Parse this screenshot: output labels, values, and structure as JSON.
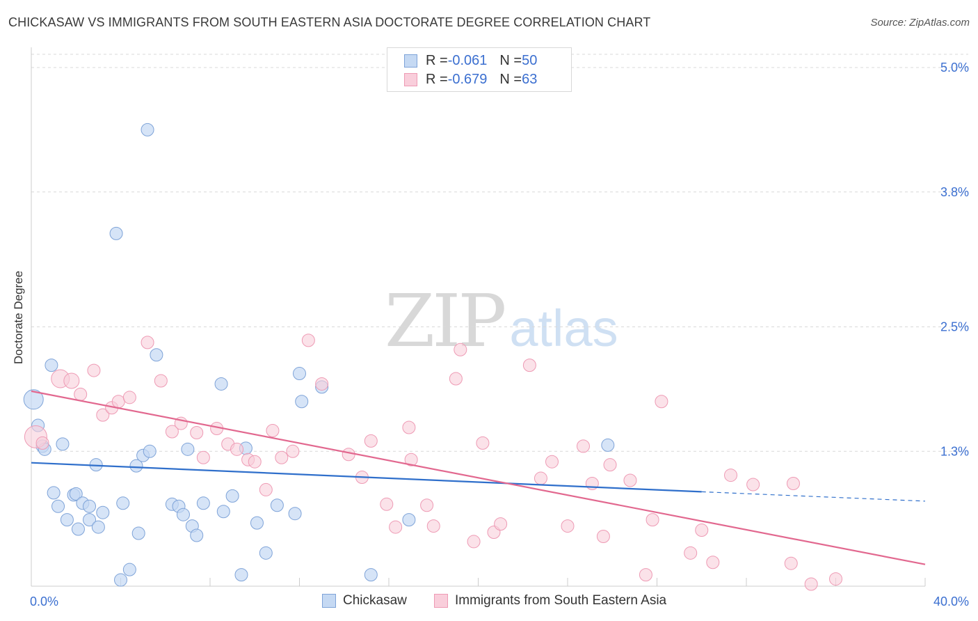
{
  "header": {
    "title": "CHICKASAW VS IMMIGRANTS FROM SOUTH EASTERN ASIA DOCTORATE DEGREE CORRELATION CHART",
    "source": "Source: ZipAtlas.com"
  },
  "watermark": {
    "zip": "ZIP",
    "atlas": "atlas"
  },
  "legend_top": {
    "rows": [
      {
        "r_label": "R = ",
        "r_value": "-0.061",
        "n_label": "N = ",
        "n_value": "50"
      },
      {
        "r_label": "R = ",
        "r_value": "-0.679",
        "n_label": "N = ",
        "n_value": "63"
      }
    ]
  },
  "chart_data": {
    "type": "scatter",
    "title": "CHICKASAW VS IMMIGRANTS FROM SOUTH EASTERN ASIA DOCTORATE DEGREE CORRELATION CHART",
    "xlabel": "",
    "ylabel": "Doctorate Degree",
    "xlim": [
      0,
      40
    ],
    "ylim": [
      0,
      5.0
    ],
    "x_tick_labels": [
      "0.0%",
      "40.0%"
    ],
    "y_ticks": [
      1.3,
      2.5,
      3.8,
      5.0
    ],
    "y_tick_labels": [
      "1.3%",
      "2.5%",
      "3.8%",
      "5.0%"
    ],
    "grid": true,
    "legend_position": "bottom",
    "colors": {
      "chickasaw_fill": "#c5d9f3",
      "chickasaw_stroke": "#7ea3d8",
      "chickasaw_line": "#2f6fcb",
      "immigrants_fill": "#f9cedb",
      "immigrants_stroke": "#ee9ab4",
      "immigrants_line": "#e2688f",
      "tick_label": "#3b6fd0",
      "grid": "#d9d9d9"
    },
    "series": [
      {
        "name": "Chickasaw",
        "r": -0.061,
        "n": 50,
        "trend": {
          "x0": 0,
          "y0": 1.19,
          "x1": 30,
          "y1": 0.91,
          "dash_x1": 40,
          "dash_y1": 0.82
        },
        "points": [
          [
            0.1,
            1.8,
            14
          ],
          [
            0.3,
            1.55,
            9
          ],
          [
            0.5,
            1.35,
            9
          ],
          [
            0.6,
            1.32,
            9
          ],
          [
            0.9,
            2.13,
            9
          ],
          [
            1.0,
            0.9,
            9
          ],
          [
            1.2,
            0.77,
            9
          ],
          [
            1.4,
            1.37,
            9
          ],
          [
            1.6,
            0.64,
            9
          ],
          [
            1.9,
            0.88,
            9
          ],
          [
            2.0,
            0.89,
            9
          ],
          [
            2.1,
            0.55,
            9
          ],
          [
            2.3,
            0.8,
            9
          ],
          [
            2.6,
            0.77,
            9
          ],
          [
            2.6,
            0.64,
            9
          ],
          [
            2.9,
            1.17,
            9
          ],
          [
            3.0,
            0.57,
            9
          ],
          [
            3.2,
            0.71,
            9
          ],
          [
            4.0,
            0.06,
            9
          ],
          [
            4.1,
            0.8,
            9
          ],
          [
            4.4,
            0.16,
            9
          ],
          [
            4.7,
            1.16,
            9
          ],
          [
            4.8,
            0.51,
            9
          ],
          [
            5.0,
            1.26,
            9
          ],
          [
            5.2,
            4.4,
            9
          ],
          [
            5.3,
            1.3,
            9
          ],
          [
            5.6,
            2.23,
            9
          ],
          [
            6.3,
            0.79,
            9
          ],
          [
            6.6,
            0.77,
            9
          ],
          [
            6.8,
            0.69,
            9
          ],
          [
            7.0,
            1.32,
            9
          ],
          [
            7.2,
            0.58,
            9
          ],
          [
            7.4,
            0.49,
            9
          ],
          [
            7.7,
            0.8,
            9
          ],
          [
            8.5,
            1.95,
            9
          ],
          [
            8.6,
            0.72,
            9
          ],
          [
            9.0,
            0.87,
            9
          ],
          [
            9.4,
            0.11,
            9
          ],
          [
            9.6,
            1.33,
            9
          ],
          [
            10.1,
            0.61,
            9
          ],
          [
            10.5,
            0.32,
            9
          ],
          [
            11.0,
            0.78,
            9
          ],
          [
            11.8,
            0.7,
            9
          ],
          [
            12.0,
            2.05,
            9
          ],
          [
            12.1,
            1.78,
            9
          ],
          [
            13.0,
            1.92,
            9
          ],
          [
            15.2,
            0.11,
            9
          ],
          [
            16.9,
            0.64,
            9
          ],
          [
            25.8,
            1.36,
            9
          ],
          [
            3.8,
            3.4,
            9
          ]
        ]
      },
      {
        "name": "Immigrants from South Eastern Asia",
        "r": -0.679,
        "n": 63,
        "trend": {
          "x0": 0,
          "y0": 1.88,
          "x1": 40,
          "y1": 0.21
        },
        "points": [
          [
            0.2,
            1.44,
            16
          ],
          [
            1.3,
            2.0,
            13
          ],
          [
            1.8,
            1.98,
            11
          ],
          [
            2.2,
            1.85,
            9
          ],
          [
            2.8,
            2.08,
            9
          ],
          [
            3.2,
            1.65,
            9
          ],
          [
            3.6,
            1.72,
            9
          ],
          [
            3.9,
            1.78,
            9
          ],
          [
            4.4,
            1.82,
            9
          ],
          [
            5.2,
            2.35,
            9
          ],
          [
            5.8,
            1.98,
            9
          ],
          [
            6.3,
            1.49,
            9
          ],
          [
            6.7,
            1.57,
            9
          ],
          [
            7.4,
            1.48,
            9
          ],
          [
            7.7,
            1.24,
            9
          ],
          [
            8.3,
            1.52,
            9
          ],
          [
            8.8,
            1.37,
            9
          ],
          [
            9.2,
            1.32,
            9
          ],
          [
            9.7,
            1.22,
            9
          ],
          [
            10.0,
            1.2,
            9
          ],
          [
            10.5,
            0.93,
            9
          ],
          [
            10.8,
            1.5,
            9
          ],
          [
            11.2,
            1.24,
            9
          ],
          [
            11.7,
            1.3,
            9
          ],
          [
            12.4,
            2.37,
            9
          ],
          [
            13.0,
            1.95,
            9
          ],
          [
            14.2,
            1.27,
            9
          ],
          [
            14.8,
            1.05,
            9
          ],
          [
            15.2,
            1.4,
            9
          ],
          [
            15.9,
            0.79,
            9
          ],
          [
            16.3,
            0.57,
            9
          ],
          [
            16.9,
            1.53,
            9
          ],
          [
            17.0,
            1.22,
            9
          ],
          [
            17.7,
            0.78,
            9
          ],
          [
            18.0,
            0.58,
            9
          ],
          [
            19.0,
            2.0,
            9
          ],
          [
            19.2,
            2.28,
            9
          ],
          [
            19.8,
            0.43,
            9
          ],
          [
            20.2,
            1.38,
            9
          ],
          [
            20.7,
            0.52,
            9
          ],
          [
            21.0,
            0.6,
            9
          ],
          [
            22.3,
            2.13,
            9
          ],
          [
            22.8,
            1.04,
            9
          ],
          [
            23.3,
            1.2,
            9
          ],
          [
            24.0,
            0.58,
            9
          ],
          [
            24.7,
            1.35,
            9
          ],
          [
            25.1,
            0.99,
            9
          ],
          [
            25.6,
            0.48,
            9
          ],
          [
            25.9,
            1.17,
            9
          ],
          [
            26.8,
            1.02,
            9
          ],
          [
            27.5,
            0.11,
            9
          ],
          [
            27.8,
            0.64,
            9
          ],
          [
            28.2,
            1.78,
            9
          ],
          [
            29.5,
            0.32,
            9
          ],
          [
            30.0,
            0.54,
            9
          ],
          [
            30.5,
            0.23,
            9
          ],
          [
            31.3,
            1.07,
            9
          ],
          [
            32.3,
            0.98,
            9
          ],
          [
            34.0,
            0.22,
            9
          ],
          [
            34.1,
            0.99,
            9
          ],
          [
            34.9,
            0.02,
            9
          ],
          [
            36.0,
            0.07,
            9
          ],
          [
            0.5,
            1.38,
            9
          ]
        ]
      }
    ]
  },
  "legend_bottom": [
    {
      "label": "Chickasaw"
    },
    {
      "label": "Immigrants from South Eastern Asia"
    }
  ]
}
